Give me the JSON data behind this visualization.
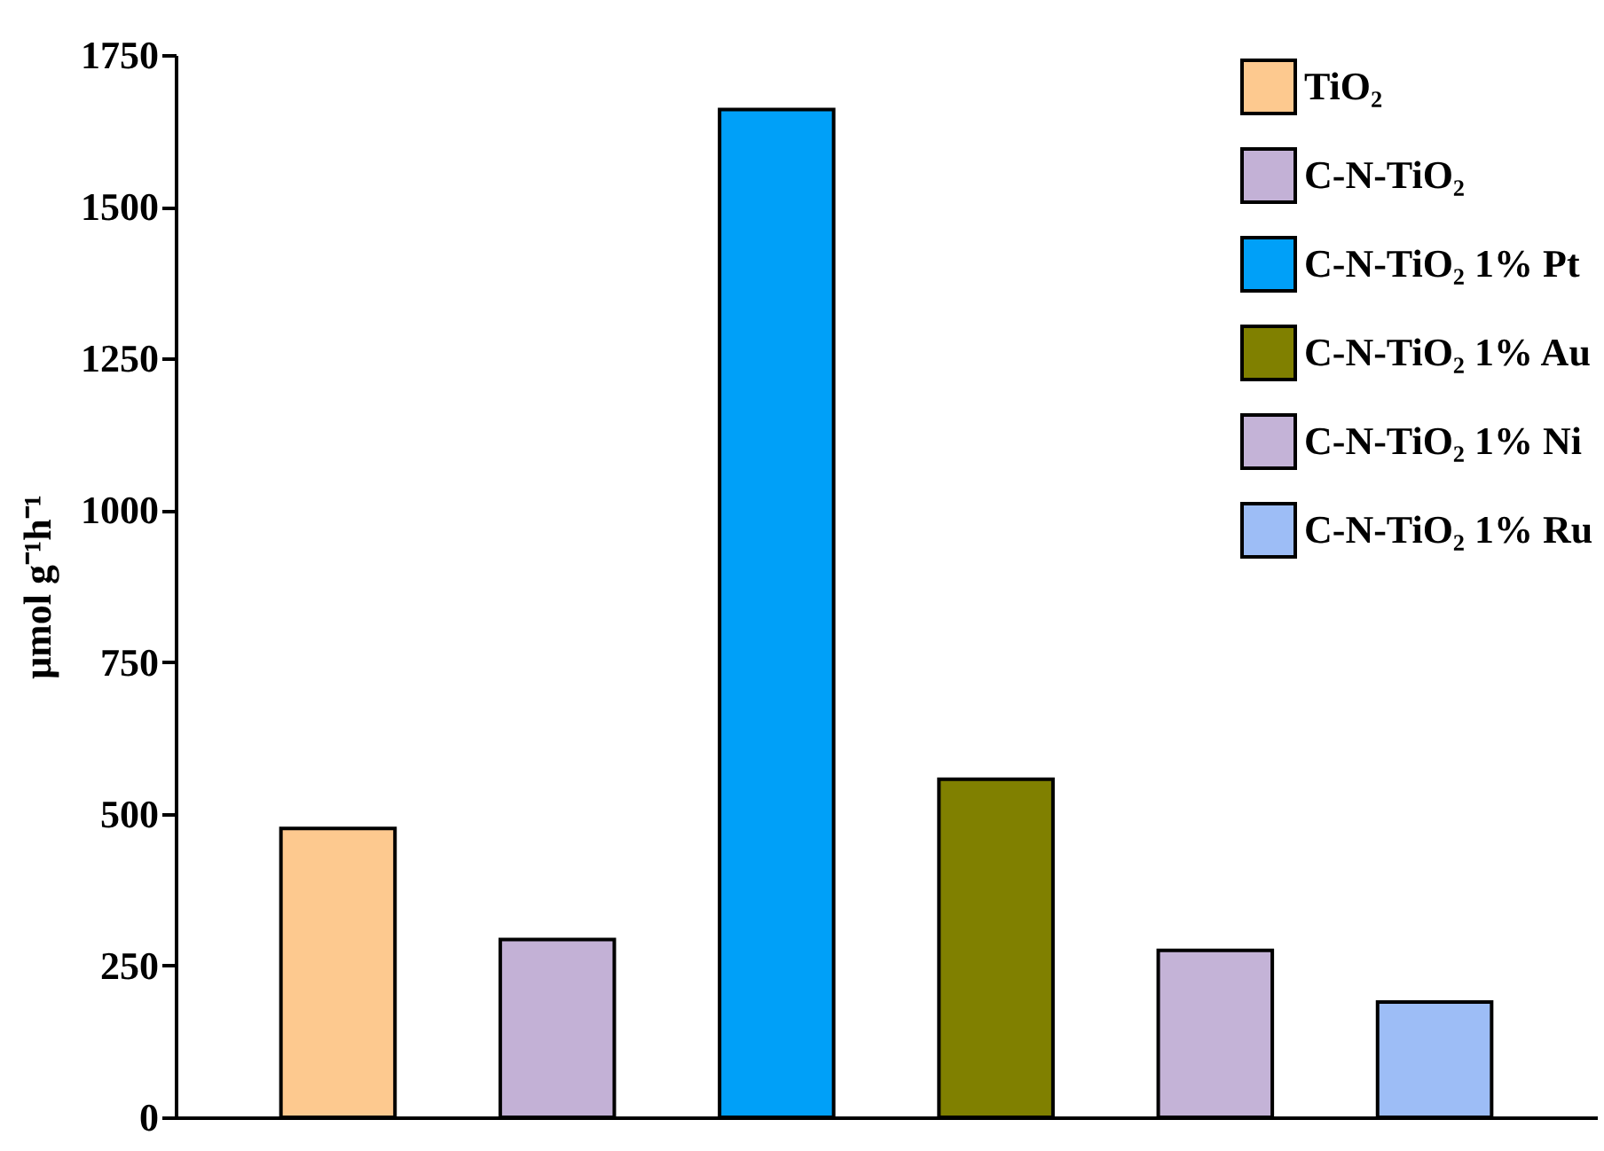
{
  "chart_data": {
    "type": "bar",
    "ylabel": "μmol g⁻¹h⁻¹",
    "categories": [
      null,
      null,
      null,
      null,
      null,
      null
    ],
    "series": [
      {
        "name": "TiO₂",
        "color": "#fdc98f",
        "values": [
          476,
          null,
          null,
          null,
          null,
          null
        ]
      },
      {
        "name": "C-N-TiO₂",
        "color": "#c3b1d6",
        "values": [
          null,
          293,
          null,
          null,
          null,
          null
        ]
      },
      {
        "name": "C-N-TiO₂ 1% Pt",
        "color": "#00a0f8",
        "values": [
          null,
          null,
          1660,
          null,
          null,
          null
        ]
      },
      {
        "name": "C-N-TiO₂ 1% Au",
        "color": "#808000",
        "values": [
          null,
          null,
          null,
          557,
          null,
          null
        ]
      },
      {
        "name": "C-N-TiO₂ 1% Ni",
        "color": "#c4b3d7",
        "values": [
          null,
          null,
          null,
          null,
          275,
          null
        ]
      },
      {
        "name": "C-N-TiO₂ 1% Ru",
        "color": "#9dbdf6",
        "values": [
          null,
          null,
          null,
          null,
          null,
          190
        ]
      }
    ],
    "ylim": [
      0,
      1750
    ],
    "yticks": [
      0,
      250,
      500,
      750,
      1000,
      1250,
      1500,
      1750
    ],
    "legend": "top right",
    "tick_labels": "y"
  }
}
